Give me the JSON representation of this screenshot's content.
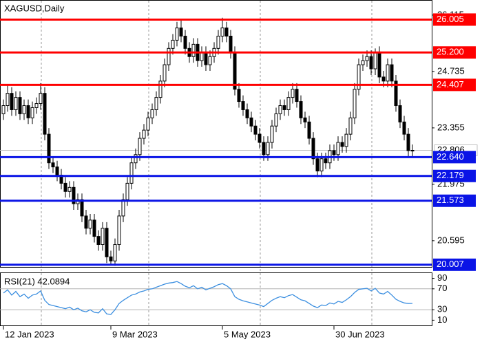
{
  "chart_data": {
    "type": "candlestick",
    "symbol_label": "XAGUSD,Daily",
    "bull_color": "#ffffff",
    "bear_color": "#000000",
    "ylim": [
      19.97,
      26.45
    ],
    "yticks": [
      26.115,
      24.735,
      23.355,
      21.975,
      20.595
    ],
    "current_price": 22.806,
    "levels": [
      {
        "value": 26.005,
        "color": "#ff0000"
      },
      {
        "value": 25.2,
        "label": "25.200",
        "color": "#ff0000"
      },
      {
        "value": 24.407,
        "color": "#ff0000"
      },
      {
        "value": 22.64,
        "label": "22.640",
        "color": "#0a14e6"
      },
      {
        "value": 22.179,
        "color": "#0a14e6"
      },
      {
        "value": 21.573,
        "color": "#0a14e6"
      },
      {
        "value": 20.007,
        "color": "#0a14e6"
      }
    ],
    "categories": [
      "12 Jan 2023",
      null,
      null,
      null,
      null,
      null,
      null,
      null,
      null,
      null,
      null,
      null,
      null,
      null,
      null,
      null,
      null,
      null,
      null,
      null,
      null,
      null,
      null,
      null,
      null,
      null,
      "9 Mar 2023",
      null,
      null,
      null,
      null,
      null,
      null,
      null,
      null,
      null,
      null,
      null,
      null,
      null,
      null,
      null,
      null,
      null,
      null,
      null,
      null,
      null,
      null,
      null,
      null,
      null,
      null,
      "5 May 2023",
      null,
      null,
      null,
      null,
      null,
      null,
      null,
      null,
      null,
      null,
      null,
      null,
      null,
      null,
      null,
      null,
      null,
      null,
      null,
      null,
      null,
      null,
      null,
      null,
      null,
      null,
      "30 Jun 2023",
      null,
      null,
      null,
      null,
      null,
      null,
      null,
      null,
      null,
      null,
      null,
      null,
      null,
      null,
      null,
      null,
      null,
      null,
      null
    ],
    "ohlc": [
      [
        23.7,
        24.05,
        23.55,
        23.9
      ],
      [
        23.9,
        24.4,
        23.75,
        24.2
      ],
      [
        24.2,
        24.35,
        23.65,
        23.8
      ],
      [
        23.8,
        24.25,
        23.65,
        24.1
      ],
      [
        24.1,
        24.25,
        23.55,
        23.7
      ],
      [
        23.7,
        24.05,
        23.55,
        23.9
      ],
      [
        23.9,
        24.05,
        23.45,
        23.6
      ],
      [
        23.6,
        24.0,
        23.45,
        23.85
      ],
      [
        23.85,
        24.1,
        23.7,
        23.95
      ],
      [
        23.95,
        24.45,
        23.8,
        24.2
      ],
      [
        24.2,
        24.35,
        23.05,
        23.2
      ],
      [
        23.2,
        23.35,
        22.35,
        22.5
      ],
      [
        22.5,
        22.65,
        22.25,
        22.4
      ],
      [
        22.4,
        22.55,
        22.05,
        22.2
      ],
      [
        22.2,
        22.35,
        21.85,
        22.0
      ],
      [
        22.0,
        22.15,
        21.65,
        21.8
      ],
      [
        21.8,
        22.05,
        21.65,
        21.9
      ],
      [
        21.9,
        22.05,
        21.35,
        21.5
      ],
      [
        21.5,
        21.75,
        21.35,
        21.6
      ],
      [
        21.6,
        21.75,
        21.05,
        21.2
      ],
      [
        21.2,
        21.35,
        20.75,
        20.9
      ],
      [
        20.9,
        21.25,
        20.75,
        21.1
      ],
      [
        21.1,
        21.25,
        20.55,
        20.7
      ],
      [
        20.7,
        20.85,
        20.35,
        20.5
      ],
      [
        20.5,
        21.05,
        20.35,
        20.9
      ],
      [
        20.9,
        21.05,
        20.05,
        20.2
      ],
      [
        20.2,
        20.35,
        20.0,
        20.1
      ],
      [
        20.1,
        20.65,
        19.98,
        20.5
      ],
      [
        20.5,
        21.35,
        20.35,
        21.2
      ],
      [
        21.2,
        21.75,
        21.05,
        21.6
      ],
      [
        21.6,
        22.15,
        21.45,
        22.0
      ],
      [
        22.0,
        22.65,
        21.85,
        22.5
      ],
      [
        22.5,
        22.85,
        22.35,
        22.7
      ],
      [
        22.7,
        23.25,
        22.55,
        23.1
      ],
      [
        23.1,
        23.45,
        22.95,
        23.3
      ],
      [
        23.3,
        23.75,
        23.15,
        23.6
      ],
      [
        23.6,
        23.95,
        23.45,
        23.8
      ],
      [
        23.8,
        24.25,
        23.65,
        24.1
      ],
      [
        24.1,
        24.65,
        23.95,
        24.5
      ],
      [
        24.5,
        25.05,
        24.35,
        24.9
      ],
      [
        24.9,
        25.45,
        24.75,
        25.3
      ],
      [
        25.3,
        25.65,
        25.15,
        25.5
      ],
      [
        25.5,
        25.95,
        25.35,
        25.8
      ],
      [
        25.8,
        26.0,
        25.45,
        25.6
      ],
      [
        25.6,
        25.75,
        25.15,
        25.3
      ],
      [
        25.3,
        25.45,
        24.95,
        25.1
      ],
      [
        25.1,
        25.55,
        24.95,
        25.4
      ],
      [
        25.4,
        25.55,
        24.85,
        25.0
      ],
      [
        25.0,
        25.35,
        24.85,
        25.2
      ],
      [
        25.2,
        25.35,
        24.75,
        24.9
      ],
      [
        24.9,
        25.25,
        24.75,
        25.1
      ],
      [
        25.1,
        25.45,
        24.95,
        25.3
      ],
      [
        25.3,
        25.75,
        25.15,
        25.6
      ],
      [
        25.6,
        26.05,
        25.45,
        25.8
      ],
      [
        25.8,
        25.95,
        25.45,
        25.6
      ],
      [
        25.6,
        25.75,
        25.05,
        25.2
      ],
      [
        25.2,
        25.35,
        24.15,
        24.3
      ],
      [
        24.3,
        24.45,
        23.85,
        24.0
      ],
      [
        24.0,
        24.15,
        23.65,
        23.8
      ],
      [
        23.8,
        23.95,
        23.45,
        23.6
      ],
      [
        23.6,
        23.75,
        23.25,
        23.4
      ],
      [
        23.4,
        23.55,
        23.05,
        23.2
      ],
      [
        23.2,
        23.35,
        22.85,
        23.0
      ],
      [
        23.0,
        23.15,
        22.55,
        22.7
      ],
      [
        22.7,
        23.15,
        22.55,
        23.0
      ],
      [
        23.0,
        23.55,
        22.85,
        23.4
      ],
      [
        23.4,
        23.85,
        23.25,
        23.7
      ],
      [
        23.7,
        24.05,
        23.55,
        23.9
      ],
      [
        23.9,
        24.05,
        23.65,
        23.8
      ],
      [
        23.8,
        24.25,
        23.65,
        24.1
      ],
      [
        24.1,
        24.45,
        23.95,
        24.3
      ],
      [
        24.3,
        24.45,
        23.85,
        24.0
      ],
      [
        24.0,
        24.15,
        23.45,
        23.6
      ],
      [
        23.6,
        23.75,
        23.35,
        23.5
      ],
      [
        23.5,
        23.65,
        22.95,
        23.1
      ],
      [
        23.1,
        23.25,
        22.45,
        22.6
      ],
      [
        22.6,
        22.75,
        22.15,
        22.3
      ],
      [
        22.3,
        22.75,
        22.15,
        22.6
      ],
      [
        22.6,
        22.75,
        22.35,
        22.5
      ],
      [
        22.5,
        22.95,
        22.35,
        22.8
      ],
      [
        22.8,
        22.95,
        22.55,
        22.7
      ],
      [
        22.7,
        23.15,
        22.55,
        23.0
      ],
      [
        23.0,
        23.15,
        22.75,
        22.9
      ],
      [
        22.9,
        23.35,
        22.75,
        23.2
      ],
      [
        23.2,
        23.75,
        23.05,
        23.6
      ],
      [
        23.6,
        24.45,
        23.45,
        24.3
      ],
      [
        24.3,
        25.05,
        24.15,
        24.9
      ],
      [
        24.9,
        25.15,
        24.75,
        25.0
      ],
      [
        25.0,
        25.25,
        24.85,
        25.1
      ],
      [
        25.1,
        25.25,
        24.65,
        24.8
      ],
      [
        24.8,
        25.3,
        24.65,
        25.2
      ],
      [
        25.2,
        25.35,
        24.45,
        24.6
      ],
      [
        24.6,
        24.75,
        24.35,
        24.5
      ],
      [
        24.5,
        25.05,
        24.35,
        24.9
      ],
      [
        24.9,
        25.05,
        24.35,
        24.5
      ],
      [
        24.5,
        24.65,
        23.75,
        23.9
      ],
      [
        23.9,
        24.05,
        23.35,
        23.5
      ],
      [
        23.5,
        23.65,
        23.05,
        23.2
      ],
      [
        23.2,
        23.35,
        22.65,
        22.8
      ],
      [
        22.8,
        22.95,
        22.65,
        22.806
      ]
    ],
    "rsi": {
      "title": "RSI(21) 42.0894",
      "color": "#3c8fe0",
      "ylim": [
        0,
        100
      ],
      "yticks": [
        90,
        70,
        30,
        10
      ],
      "levels": [
        70,
        30
      ],
      "values": [
        62,
        68,
        58,
        65,
        55,
        60,
        52,
        58,
        60,
        66,
        48,
        40,
        38,
        36,
        34,
        32,
        35,
        30,
        33,
        28,
        26,
        30,
        25,
        24,
        32,
        22,
        21,
        30,
        42,
        48,
        53,
        58,
        60,
        64,
        66,
        69,
        70,
        73,
        76,
        79,
        81,
        82,
        84,
        80,
        75,
        72,
        76,
        70,
        73,
        68,
        71,
        74,
        78,
        80,
        76,
        70,
        55,
        50,
        47,
        45,
        43,
        41,
        39,
        36,
        42,
        48,
        52,
        55,
        53,
        57,
        59,
        54,
        49,
        47,
        42,
        37,
        34,
        39,
        38,
        43,
        41,
        46,
        44,
        49,
        55,
        63,
        69,
        70,
        71,
        66,
        71,
        62,
        60,
        65,
        58,
        50,
        46,
        43,
        42,
        42.0894
      ]
    }
  }
}
